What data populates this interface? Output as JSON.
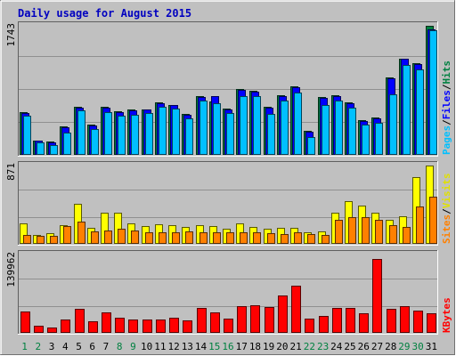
{
  "chart_data": [
    {
      "type": "bar",
      "title": "Daily usage for August 2015",
      "categories": [
        "1",
        "2",
        "3",
        "4",
        "5",
        "6",
        "7",
        "8",
        "9",
        "10",
        "11",
        "12",
        "13",
        "14",
        "15",
        "16",
        "17",
        "18",
        "19",
        "20",
        "21",
        "22",
        "23",
        "24",
        "25",
        "26",
        "27",
        "28",
        "29",
        "30",
        "31"
      ],
      "weekend_days": [
        "1",
        "2",
        "8",
        "9",
        "15",
        "16",
        "22",
        "23",
        "29",
        "30"
      ],
      "y_tick_label": "1743",
      "ylim": [
        0,
        1743
      ],
      "grid": true,
      "right_label": [
        "Pages",
        "/",
        "Files",
        "/",
        "Hits"
      ],
      "series": [
        {
          "name": "Hits",
          "color": "#008040",
          "values": [
            572,
            185,
            170,
            370,
            640,
            400,
            640,
            580,
            600,
            610,
            700,
            670,
            540,
            790,
            720,
            620,
            880,
            860,
            640,
            800,
            920,
            310,
            770,
            800,
            700,
            460,
            500,
            1040,
            1300,
            1230,
            1743
          ]
        },
        {
          "name": "Files",
          "color": "#0000ff",
          "values": [
            560,
            180,
            160,
            360,
            630,
            390,
            630,
            570,
            590,
            600,
            690,
            660,
            530,
            780,
            790,
            610,
            870,
            850,
            630,
            790,
            910,
            300,
            760,
            790,
            690,
            450,
            490,
            1030,
            1290,
            1220,
            1700
          ]
        },
        {
          "name": "Pages",
          "color": "#00c0ff",
          "values": [
            525,
            155,
            125,
            285,
            590,
            335,
            570,
            515,
            535,
            555,
            645,
            615,
            480,
            730,
            690,
            560,
            790,
            785,
            545,
            725,
            840,
            230,
            665,
            725,
            630,
            400,
            425,
            815,
            1215,
            1155,
            1680
          ]
        }
      ]
    },
    {
      "type": "bar",
      "categories": [
        "1",
        "2",
        "3",
        "4",
        "5",
        "6",
        "7",
        "8",
        "9",
        "10",
        "11",
        "12",
        "13",
        "14",
        "15",
        "16",
        "17",
        "18",
        "19",
        "20",
        "21",
        "22",
        "23",
        "24",
        "25",
        "26",
        "27",
        "28",
        "29",
        "30",
        "31"
      ],
      "y_tick_label": "871",
      "ylim": [
        0,
        871
      ],
      "grid": true,
      "right_label": [
        "Sites",
        "/",
        "Visits"
      ],
      "series": [
        {
          "name": "Visits",
          "color": "#ffff00",
          "values": [
            225,
            95,
            110,
            205,
            440,
            170,
            345,
            345,
            225,
            190,
            210,
            205,
            180,
            200,
            195,
            160,
            225,
            185,
            165,
            170,
            170,
            120,
            135,
            340,
            475,
            420,
            345,
            265,
            305,
            740,
            871
          ]
        },
        {
          "name": "Sites",
          "color": "#ff8000",
          "values": [
            95,
            80,
            80,
            195,
            240,
            130,
            145,
            165,
            140,
            125,
            125,
            125,
            135,
            125,
            125,
            120,
            125,
            125,
            115,
            105,
            120,
            100,
            95,
            260,
            290,
            290,
            260,
            205,
            185,
            410,
            520
          ]
        }
      ]
    },
    {
      "type": "bar",
      "categories": [
        "1",
        "2",
        "3",
        "4",
        "5",
        "6",
        "7",
        "8",
        "9",
        "10",
        "11",
        "12",
        "13",
        "14",
        "15",
        "16",
        "17",
        "18",
        "19",
        "20",
        "21",
        "22",
        "23",
        "24",
        "25",
        "26",
        "27",
        "28",
        "29",
        "30",
        "31"
      ],
      "y_tick_label": "139962",
      "ylim": [
        0,
        139962
      ],
      "grid": true,
      "right_label": [
        "KBytes"
      ],
      "series": [
        {
          "name": "KBytes",
          "color": "#ff0000",
          "values": [
            36500,
            12000,
            8500,
            22000,
            42000,
            20000,
            35500,
            25000,
            22000,
            22500,
            23000,
            26000,
            21500,
            43000,
            36000,
            24000,
            47000,
            48000,
            45500,
            66000,
            84000,
            24000,
            29000,
            44000,
            44000,
            34500,
            132000,
            42000,
            46000,
            38000,
            34500
          ]
        }
      ]
    }
  ]
}
